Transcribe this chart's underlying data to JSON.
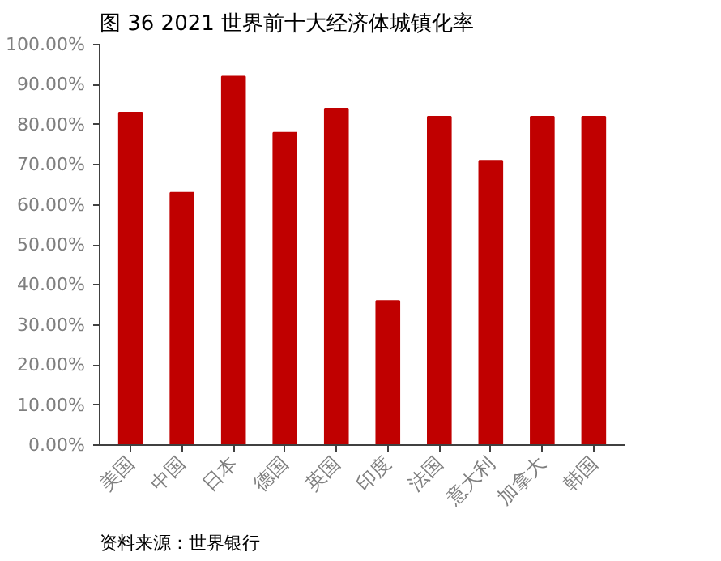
{
  "chart_data": {
    "type": "bar",
    "title": "图 36 2021 世界前十大经济体城镇化率",
    "categories": [
      "美国",
      "中国",
      "日本",
      "德国",
      "英国",
      "印度",
      "法国",
      "意大利",
      "加拿大",
      "韩国"
    ],
    "values": [
      83,
      63,
      92,
      78,
      84,
      36,
      82,
      71,
      82,
      82
    ],
    "color": "#c00000",
    "ylim": [
      0,
      100
    ],
    "yticks": [
      {
        "value": 0,
        "label": "0.00%"
      },
      {
        "value": 10,
        "label": "10.00%"
      },
      {
        "value": 20,
        "label": "20.00%"
      },
      {
        "value": 30,
        "label": "30.00%"
      },
      {
        "value": 40,
        "label": "40.00%"
      },
      {
        "value": 50,
        "label": "50.00%"
      },
      {
        "value": 60,
        "label": "60.00%"
      },
      {
        "value": 70,
        "label": "70.00%"
      },
      {
        "value": 80,
        "label": "80.00%"
      },
      {
        "value": 90,
        "label": "90.00%"
      },
      {
        "value": 100,
        "label": "100.00%"
      }
    ],
    "grid": false,
    "annotations": [
      "资料来源：世界银行"
    ]
  }
}
